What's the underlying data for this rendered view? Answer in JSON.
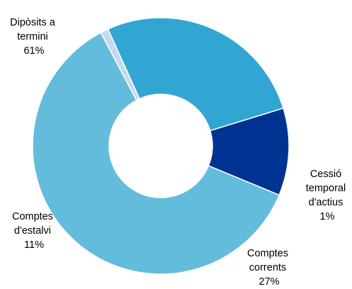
{
  "chart_data": {
    "type": "pie",
    "donut": true,
    "title": "",
    "start_angle_deg": 112.5,
    "slices": [
      {
        "label_lines": [
          "Dipòsits a",
          "termini",
          "61%"
        ],
        "percent": 61,
        "color": "#63bcdb"
      },
      {
        "label_lines": [
          "Cessió",
          "temporal",
          "d'actius",
          "1%"
        ],
        "percent": 1,
        "color": "#c6d9ee"
      },
      {
        "label_lines": [
          "Comptes",
          "corrents",
          "27%"
        ],
        "percent": 27,
        "color": "#32a6d2"
      },
      {
        "label_lines": [
          "Comptes",
          "d'estalvi",
          "11%"
        ],
        "percent": 11,
        "color": "#003392"
      }
    ]
  }
}
